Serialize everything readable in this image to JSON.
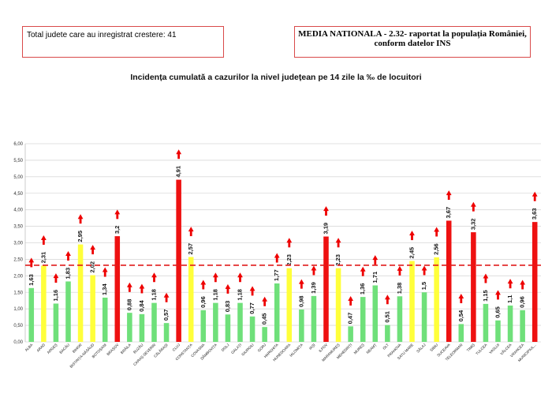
{
  "header": {
    "total_counties": "Total judete care au inregistrat crestere: 41",
    "national_average": "MEDIA NATIONALA - 2.32-  raportat la populația României, conform datelor INS"
  },
  "colors": {
    "green": "#6fe07a",
    "yellow": "#ffff3a",
    "red": "#ee1111",
    "arrow": "#ee0000",
    "reference_line": "#e01b1b",
    "grid": "#d9d9d9"
  },
  "chart_data": {
    "type": "bar",
    "title": "Incidența cumulată a cazurilor la nivel județean pe 14 zile la ‰ de locuitori",
    "xlabel": "",
    "ylabel": "",
    "ylim": [
      0,
      6
    ],
    "yticks": [
      "0,00",
      "0,50",
      "1,00",
      "1,50",
      "2,00",
      "2,50",
      "3,00",
      "3,50",
      "4,00",
      "4,50",
      "5,00",
      "5,50",
      "6,00"
    ],
    "grid": true,
    "reference_line": 2.32,
    "categories": [
      "ALBA",
      "ARAD",
      "ARGEȘ",
      "BACĂU",
      "BIHOR",
      "BISTRIȚA-NĂSĂUD",
      "BOTOȘANI",
      "BRAȘOV",
      "BRĂILA",
      "BUZĂU",
      "CARAȘ-SEVERIN",
      "CĂLĂRAȘI",
      "CLUJ",
      "CONSTANȚA",
      "COVASNA",
      "DÂMBOVIȚA",
      "DOLJ",
      "GALAȚI",
      "GIURGIU",
      "GORJ",
      "HARGHITA",
      "HUNEDOARA",
      "IALOMIȚA",
      "IAȘI",
      "ILFOV",
      "MARAMUREȘ",
      "MEHEDINȚI",
      "MUREȘ",
      "NEAMȚ",
      "OLT",
      "PRAHOVA",
      "SATU MARE",
      "SĂLAJ",
      "SIBIU",
      "SUCEAVA",
      "TELEORMAN",
      "TIMIȘ",
      "TULCEA",
      "VASLUI",
      "VÂLCEA",
      "VRANCEA",
      "MUNICIPIUL..."
    ],
    "values": [
      1.63,
      2.31,
      1.16,
      1.83,
      2.95,
      2.02,
      1.34,
      3.2,
      0.88,
      0.84,
      1.18,
      0.57,
      4.91,
      2.57,
      0.96,
      1.18,
      0.83,
      1.18,
      0.77,
      0.45,
      1.77,
      2.23,
      0.98,
      1.39,
      3.19,
      2.23,
      0.47,
      1.36,
      1.71,
      0.51,
      1.38,
      2.45,
      1.5,
      2.56,
      3.67,
      0.54,
      3.32,
      1.15,
      0.65,
      1.1,
      0.96,
      3.63
    ],
    "labels": [
      "1,63",
      "2,31",
      "1,16",
      "1,83",
      "2,95",
      "2,02",
      "1,34",
      "3,2",
      "0,88",
      "0,84",
      "1,18",
      "0,57",
      "4,91",
      "2,57",
      "0,96",
      "1,18",
      "0,83",
      "1,18",
      "0,77",
      "0,45",
      "1,77",
      "2,23",
      "0,98",
      "1,39",
      "3,19",
      "2,23",
      "0,47",
      "1,36",
      "1,71",
      "0,51",
      "1,38",
      "2,45",
      "1,5",
      "2,56",
      "3,67",
      "0,54",
      "3,32",
      "1,15",
      "0,65",
      "1,1",
      "0,96",
      "3,63"
    ],
    "trend": "all increasing (up arrows)"
  }
}
